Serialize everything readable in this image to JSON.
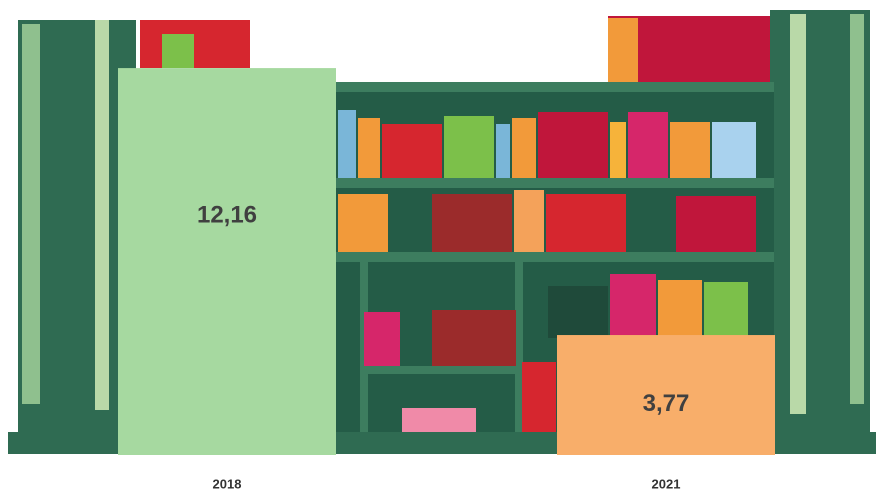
{
  "chart_data": {
    "type": "bar",
    "categories": [
      "2018",
      "2021"
    ],
    "values": [
      12.16,
      3.77
    ],
    "value_labels": [
      "12,16",
      "3,77"
    ],
    "colors": [
      "#a6d9a0",
      "#f8ae6a"
    ],
    "ylim": [
      0,
      14.3
    ]
  }
}
